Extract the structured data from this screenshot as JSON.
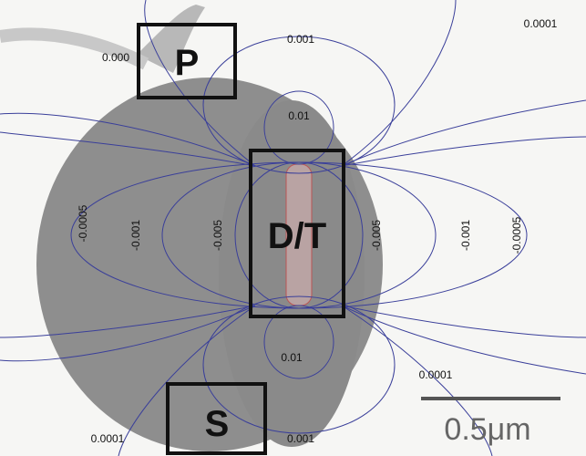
{
  "boxes": [
    {
      "label": "P"
    },
    {
      "label": "D/T"
    },
    {
      "label": "S"
    }
  ],
  "contour_labels": [
    "0.001",
    "0.0001",
    "0.000",
    "0.01",
    "-0.0005",
    "-0.001",
    "-0.005",
    "-0.005",
    "-0.001",
    "-0.0005",
    "0.01",
    "0.0001",
    "0.0001",
    "0.001"
  ],
  "scale_bar": {
    "label": "0.5μm"
  }
}
